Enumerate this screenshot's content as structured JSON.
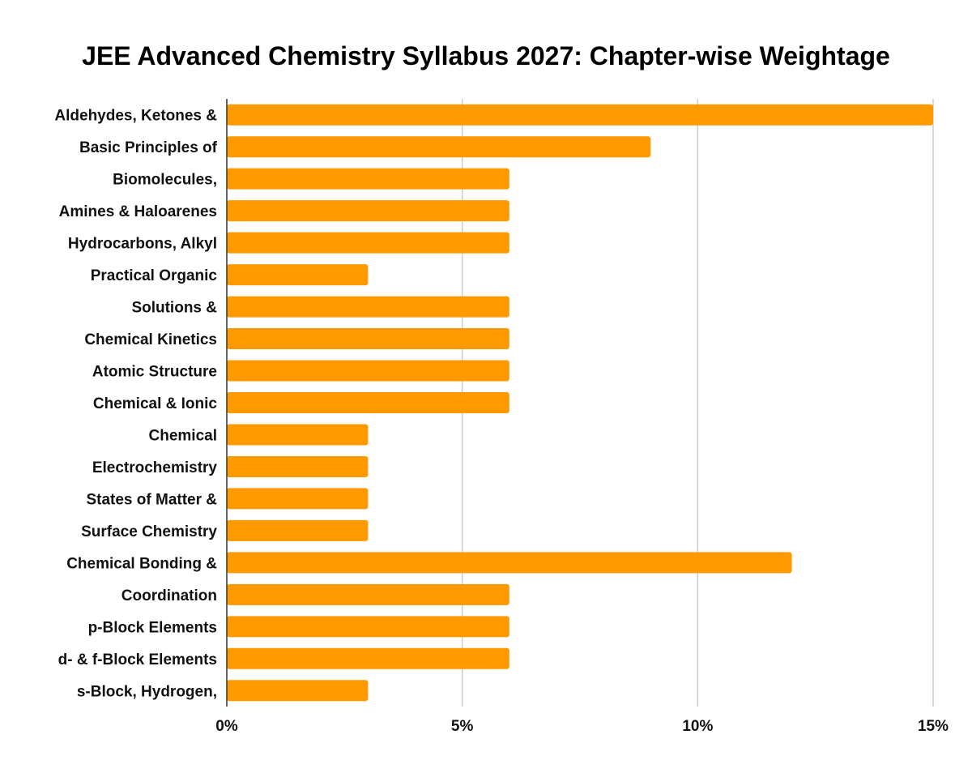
{
  "chart_data": {
    "type": "bar",
    "orientation": "horizontal",
    "title": "JEE Advanced Chemistry Syllabus 2027: Chapter-wise Weightage",
    "xlabel": "",
    "ylabel": "",
    "categories": [
      "Aldehydes, Ketones &",
      "Basic Principles of",
      "Biomolecules,",
      "Amines & Haloarenes",
      "Hydrocarbons, Alkyl",
      "Practical Organic",
      "Solutions &",
      "Chemical Kinetics",
      "Atomic Structure",
      "Chemical & Ionic",
      "Chemical",
      "Electrochemistry",
      "States of Matter &",
      "Surface Chemistry",
      "Chemical Bonding &",
      "Coordination",
      "p-Block Elements",
      "d- & f-Block Elements",
      "s-Block, Hydrogen,"
    ],
    "values": [
      15,
      9,
      6,
      6,
      6,
      3,
      6,
      6,
      6,
      6,
      3,
      3,
      3,
      3,
      12,
      6,
      6,
      6,
      3
    ],
    "value_unit": "%",
    "xlim": [
      0,
      15
    ],
    "xticks": [
      0,
      5,
      10,
      15
    ],
    "xtick_labels": [
      "0%",
      "5%",
      "10%",
      "15%"
    ],
    "grid": true,
    "legend": "none",
    "colors": {
      "bar": "#ff9900",
      "grid": "#cccccc",
      "axis": "#333333",
      "text": "#111111"
    }
  }
}
